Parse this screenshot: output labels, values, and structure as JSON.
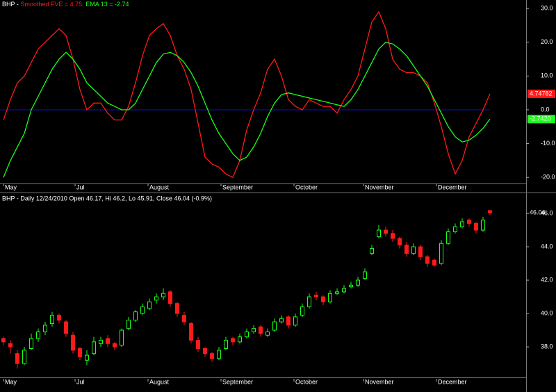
{
  "chart_data": [
    {
      "type": "line",
      "title": "BHP -",
      "xlim": [
        -0.5,
        75.2
      ],
      "ylim": [
        -21.4,
        32.5
      ],
      "yticks": [
        {
          "value": 30,
          "label": "30.0"
        },
        {
          "value": 20,
          "label": "20.0"
        },
        {
          "value": 10,
          "label": "10.0"
        },
        {
          "value": 0,
          "label": "0.0"
        },
        {
          "value": -10,
          "label": "-10.0"
        },
        {
          "value": -20,
          "label": "-20.0"
        }
      ],
      "xticks": [
        {
          "value": 0,
          "label": "May"
        },
        {
          "value": 10.3,
          "label": "Jul"
        },
        {
          "value": 20.8,
          "label": "August"
        },
        {
          "value": 31.3,
          "label": "September"
        },
        {
          "value": 41.8,
          "label": "October"
        },
        {
          "value": 51.8,
          "label": "November"
        },
        {
          "value": 62.3,
          "label": "December"
        }
      ],
      "reference_line": {
        "value": 0,
        "color": "#1010d0"
      },
      "series": [
        {
          "name": "Smoothed FVE",
          "color": "#ff1a1a",
          "legend_value_label": "= 4.75,",
          "last_value_label": "4.74782",
          "values": [
            -3,
            3,
            8,
            10,
            14,
            18,
            20,
            22,
            24,
            22,
            15,
            6,
            0,
            2,
            2,
            -1,
            -3,
            -3,
            1,
            8,
            16,
            22,
            24,
            25.5,
            22,
            16,
            12,
            6,
            -4,
            -14,
            -16,
            -17,
            -19,
            -20,
            -15,
            -6,
            0,
            5,
            12,
            15,
            10,
            3,
            1,
            0,
            3,
            2,
            1,
            1,
            -1,
            3,
            6,
            10,
            18,
            26,
            29,
            24,
            15,
            12,
            11,
            11,
            10,
            8,
            2,
            -5,
            -13,
            -19,
            -15,
            -8,
            -4,
            0,
            4.74782
          ]
        },
        {
          "name": "EMA 13",
          "color": "#1aff1a",
          "legend_value_label": "= -2.74",
          "last_value_label": "-2.7420",
          "values": [
            -20,
            -15,
            -11,
            -7,
            0,
            4,
            8,
            12,
            15,
            17,
            15,
            12,
            8,
            6,
            4,
            2,
            1,
            0,
            0,
            2,
            6,
            10,
            14,
            16.5,
            17,
            16,
            14,
            11,
            7,
            2,
            -3,
            -7,
            -10,
            -13,
            -15,
            -14,
            -11,
            -7,
            -2,
            2,
            4.5,
            5,
            4.5,
            4,
            3.5,
            3,
            2.5,
            2,
            1.5,
            1,
            3,
            6,
            10,
            14,
            18,
            20,
            19.5,
            18,
            16,
            13,
            10,
            7,
            3,
            -1,
            -5,
            -8,
            -9.5,
            -9,
            -7.5,
            -5.5,
            -2.742
          ]
        }
      ]
    },
    {
      "type": "candlestick",
      "title": "BHP - Daily 12/24/2010 Open 46.17, Hi 46.2, Lo 45.91, Close 46.04 (-0.9%)",
      "last_value_label": "46.04",
      "up_color": "#1aff1a",
      "down_color": "#ff1a1a",
      "xlim": [
        -0.5,
        75.2
      ],
      "ylim": [
        36.17,
        47.21
      ],
      "yticks": [
        {
          "value": 46,
          "label": "46.0"
        },
        {
          "value": 44,
          "label": "44.0"
        },
        {
          "value": 42,
          "label": "42.0"
        },
        {
          "value": 40,
          "label": "40.0"
        },
        {
          "value": 38,
          "label": "38.0"
        }
      ],
      "xticks": [
        {
          "value": 0,
          "label": "May"
        },
        {
          "value": 10.3,
          "label": "Jul"
        },
        {
          "value": 20.8,
          "label": "August"
        },
        {
          "value": 31.3,
          "label": "September"
        },
        {
          "value": 41.8,
          "label": "October"
        },
        {
          "value": 51.8,
          "label": "November"
        },
        {
          "value": 62.3,
          "label": "December"
        }
      ],
      "candles": [
        [
          38.5,
          38.6,
          38.1,
          38.3
        ],
        [
          38.2,
          38.4,
          37.6,
          38.0
        ],
        [
          37.6,
          37.8,
          36.7,
          37.0
        ],
        [
          37.0,
          38.0,
          36.9,
          37.8
        ],
        [
          37.9,
          38.8,
          37.8,
          38.5
        ],
        [
          38.5,
          39.1,
          38.3,
          38.9
        ],
        [
          38.9,
          39.5,
          38.7,
          39.3
        ],
        [
          39.4,
          40.1,
          39.2,
          39.9
        ],
        [
          39.9,
          40.0,
          39.4,
          39.6
        ],
        [
          39.5,
          39.6,
          38.6,
          38.8
        ],
        [
          38.7,
          38.9,
          37.6,
          37.8
        ],
        [
          37.9,
          38.0,
          37.2,
          37.4
        ],
        [
          37.2,
          37.8,
          36.9,
          37.5
        ],
        [
          37.6,
          38.6,
          37.5,
          38.3
        ],
        [
          38.2,
          38.6,
          38.0,
          38.4
        ],
        [
          38.5,
          38.7,
          38.0,
          38.2
        ],
        [
          38.2,
          38.3,
          37.8,
          38.0
        ],
        [
          38.1,
          39.1,
          38.0,
          39.0
        ],
        [
          39.1,
          39.8,
          39.0,
          39.6
        ],
        [
          39.6,
          40.2,
          39.5,
          40.1
        ],
        [
          40.0,
          40.6,
          39.9,
          40.4
        ],
        [
          40.3,
          40.9,
          40.2,
          40.7
        ],
        [
          40.8,
          41.2,
          40.6,
          41.0
        ],
        [
          41.0,
          41.5,
          40.8,
          41.2
        ],
        [
          41.3,
          41.4,
          40.4,
          40.6
        ],
        [
          40.6,
          40.7,
          39.8,
          40.0
        ],
        [
          39.9,
          40.1,
          39.3,
          39.5
        ],
        [
          39.4,
          39.5,
          38.2,
          38.4
        ],
        [
          38.4,
          38.6,
          37.7,
          37.9
        ],
        [
          37.9,
          38.0,
          37.4,
          37.6
        ],
        [
          37.6,
          37.7,
          37.1,
          37.3
        ],
        [
          37.3,
          38.0,
          37.2,
          37.8
        ],
        [
          37.9,
          38.6,
          37.8,
          38.4
        ],
        [
          38.5,
          38.6,
          38.1,
          38.3
        ],
        [
          38.3,
          38.8,
          38.2,
          38.6
        ],
        [
          38.6,
          39.1,
          38.5,
          38.9
        ],
        [
          38.9,
          39.3,
          38.8,
          39.1
        ],
        [
          39.2,
          39.3,
          38.6,
          38.8
        ],
        [
          38.7,
          39.1,
          38.6,
          38.9
        ],
        [
          39.0,
          39.7,
          38.9,
          39.5
        ],
        [
          39.5,
          39.9,
          39.4,
          39.7
        ],
        [
          39.8,
          39.9,
          39.1,
          39.3
        ],
        [
          39.3,
          40.0,
          39.2,
          39.8
        ],
        [
          39.9,
          40.6,
          39.8,
          40.4
        ],
        [
          40.4,
          41.2,
          40.3,
          41.0
        ],
        [
          41.1,
          41.3,
          40.8,
          41.0
        ],
        [
          41.0,
          41.1,
          40.5,
          40.7
        ],
        [
          40.7,
          41.4,
          40.6,
          41.2
        ],
        [
          41.2,
          41.5,
          41.1,
          41.3
        ],
        [
          41.3,
          41.7,
          41.2,
          41.5
        ],
        [
          41.6,
          41.9,
          41.5,
          41.7
        ],
        [
          41.7,
          42.2,
          41.6,
          42.0
        ],
        [
          42.1,
          42.7,
          42.0,
          42.5
        ],
        [
          43.6,
          44.1,
          43.5,
          43.9
        ],
        [
          44.6,
          45.3,
          44.5,
          45.0
        ],
        [
          45.0,
          45.2,
          44.6,
          44.8
        ],
        [
          44.8,
          45.0,
          44.3,
          44.5
        ],
        [
          44.5,
          44.6,
          43.9,
          44.1
        ],
        [
          44.1,
          44.3,
          43.4,
          43.6
        ],
        [
          43.6,
          44.2,
          43.5,
          44.0
        ],
        [
          44.0,
          44.1,
          43.2,
          43.4
        ],
        [
          43.4,
          43.5,
          42.8,
          43.0
        ],
        [
          43.2,
          43.3,
          42.8,
          42.9
        ],
        [
          43.0,
          44.4,
          42.9,
          44.2
        ],
        [
          44.2,
          45.1,
          44.1,
          44.9
        ],
        [
          44.9,
          45.4,
          44.8,
          45.2
        ],
        [
          45.2,
          45.7,
          45.1,
          45.5
        ],
        [
          45.6,
          45.7,
          45.2,
          45.4
        ],
        [
          45.4,
          45.5,
          44.8,
          45.0
        ],
        [
          45.0,
          45.8,
          44.9,
          45.6
        ],
        [
          46.17,
          46.2,
          45.91,
          46.04
        ]
      ]
    }
  ]
}
